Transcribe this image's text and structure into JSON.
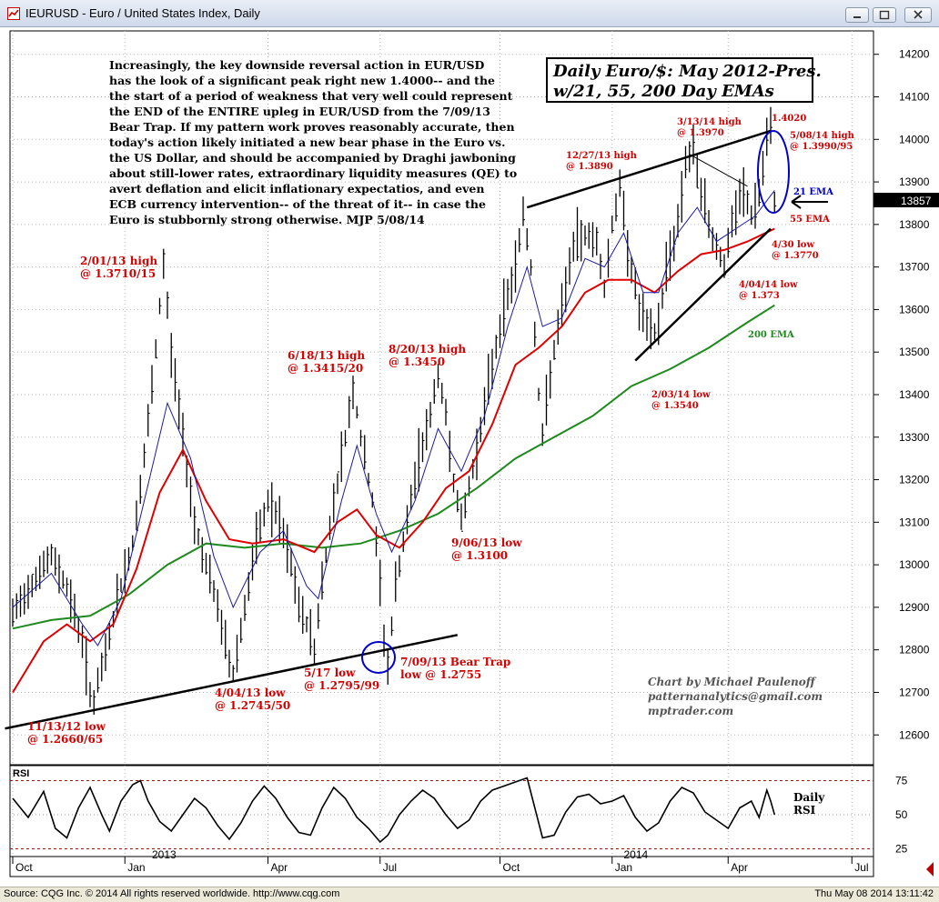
{
  "window": {
    "title": "IEURUSD - Euro / United States Index, Daily"
  },
  "statusbar": {
    "left": "Source: CQG Inc. © 2014 All rights reserved worldwide. http://www.cqg.com",
    "right": "Thu May 08 2014 13:11:42"
  },
  "commentary": {
    "lines": [
      "Increasingly, the key downside reversal action in EUR/USD",
      "has the look of a significant peak right new 1.4000-- and the",
      "the start of a period of weakness that very well could represent",
      "the END of the ENTIRE upleg in EUR/USD from the 7/09/13",
      "Bear Trap. If my pattern work proves reasonably accurate, then",
      "today's action likely initiated a new bear phase in the Euro vs.",
      "the US Dollar, and should be accompanied by Draghi jawboning",
      "about still-lower rates, extraordinary liquidity measures (QE) to",
      "avert deflation and elicit inflationary expectatios, and even",
      "ECB currency intervention-- of the threat of it-- in case the",
      "Euro is stubbornly strong otherwise.   MJP  5/08/14"
    ]
  },
  "chart_title_box": {
    "line1": "Daily Euro/$: May 2012-Pres.",
    "line2": "w/21, 55, 200 Day EMAs"
  },
  "credit": {
    "line1": "Chart by Michael Paulenoff",
    "line2": "patternanalytics@gmail.com",
    "line3": "mptrader.com"
  },
  "current_price_label": "13857",
  "rsi_panel": {
    "title": "RSI",
    "label_line1": "Daily",
    "label_line2": "RSI",
    "levels": [
      75,
      50,
      25
    ]
  },
  "colors": {
    "price_bars": "#000000",
    "ema21": "#1a1aa8",
    "ema55": "#e00000",
    "ema200": "#1e8a1e",
    "annotation_red": "#d40000",
    "annotation_green": "#1e8a1e",
    "annotation_blue": "#0000cc",
    "grid": "#b8b8b8"
  },
  "chart_data": {
    "type": "line",
    "symbol": "IEURUSD",
    "price_axis": {
      "ticks": [
        12600,
        12700,
        12800,
        12900,
        13000,
        13100,
        13200,
        13300,
        13400,
        13500,
        13600,
        13700,
        13800,
        13900,
        14000,
        14100,
        14200
      ],
      "ylim": [
        12530,
        14255
      ]
    },
    "time_axis": {
      "labels": [
        "Oct",
        "Jan",
        "Apr",
        "Jul",
        "Oct",
        "Jan",
        "Apr",
        "Jul"
      ],
      "year_labels": [
        "2013",
        "2014"
      ]
    },
    "series": [
      {
        "name": "21 EMA",
        "role": "ema21"
      },
      {
        "name": "55 EMA",
        "role": "ema55"
      },
      {
        "name": "200 EMA",
        "role": "ema200"
      }
    ],
    "price_path": [
      [
        0,
        12880
      ],
      [
        5,
        12960
      ],
      [
        10,
        13020
      ],
      [
        14,
        12950
      ],
      [
        18,
        12820
      ],
      [
        20,
        12700
      ],
      [
        21,
        12680
      ],
      [
        24,
        12790
      ],
      [
        27,
        12920
      ],
      [
        31,
        13050
      ],
      [
        34,
        13250
      ],
      [
        37,
        13500
      ],
      [
        39,
        13710
      ],
      [
        41,
        13500
      ],
      [
        44,
        13300
      ],
      [
        47,
        13100
      ],
      [
        50,
        13000
      ],
      [
        53,
        12900
      ],
      [
        56,
        12770
      ],
      [
        57,
        12745
      ],
      [
        60,
        12900
      ],
      [
        63,
        13050
      ],
      [
        66,
        13150
      ],
      [
        69,
        13100
      ],
      [
        72,
        13000
      ],
      [
        74,
        12900
      ],
      [
        77,
        12840
      ],
      [
        78,
        12800
      ],
      [
        80,
        12960
      ],
      [
        83,
        13150
      ],
      [
        86,
        13300
      ],
      [
        88,
        13415
      ],
      [
        90,
        13300
      ],
      [
        93,
        13150
      ],
      [
        95,
        12950
      ],
      [
        96,
        12830
      ],
      [
        97,
        12760
      ],
      [
        99,
        12950
      ],
      [
        102,
        13100
      ],
      [
        105,
        13250
      ],
      [
        108,
        13350
      ],
      [
        110,
        13450
      ],
      [
        112,
        13350
      ],
      [
        114,
        13200
      ],
      [
        116,
        13100
      ],
      [
        118,
        13180
      ],
      [
        121,
        13320
      ],
      [
        124,
        13470
      ],
      [
        127,
        13600
      ],
      [
        130,
        13700
      ],
      [
        132,
        13830
      ],
      [
        134,
        13700
      ],
      [
        136,
        13400
      ],
      [
        137,
        13300
      ],
      [
        139,
        13450
      ],
      [
        142,
        13600
      ],
      [
        145,
        13750
      ],
      [
        148,
        13780
      ],
      [
        151,
        13760
      ],
      [
        153,
        13650
      ],
      [
        155,
        13800
      ],
      [
        157,
        13890
      ],
      [
        159,
        13750
      ],
      [
        162,
        13600
      ],
      [
        165,
        13540
      ],
      [
        167,
        13560
      ],
      [
        169,
        13700
      ],
      [
        172,
        13800
      ],
      [
        174,
        13950
      ],
      [
        176,
        13970
      ],
      [
        178,
        13880
      ],
      [
        180,
        13800
      ],
      [
        182,
        13750
      ],
      [
        184,
        13700
      ],
      [
        186,
        13800
      ],
      [
        189,
        13880
      ],
      [
        191,
        13820
      ],
      [
        193,
        13870
      ],
      [
        195,
        13990
      ],
      [
        196,
        14020
      ],
      [
        197,
        13857
      ]
    ],
    "ema21": [
      [
        0,
        12900
      ],
      [
        10,
        12980
      ],
      [
        18,
        12860
      ],
      [
        22,
        12810
      ],
      [
        28,
        12920
      ],
      [
        34,
        13150
      ],
      [
        40,
        13380
      ],
      [
        46,
        13250
      ],
      [
        52,
        13020
      ],
      [
        57,
        12900
      ],
      [
        64,
        13030
      ],
      [
        70,
        13080
      ],
      [
        76,
        12950
      ],
      [
        79,
        12920
      ],
      [
        85,
        13150
      ],
      [
        89,
        13280
      ],
      [
        94,
        13120
      ],
      [
        98,
        13030
      ],
      [
        104,
        13150
      ],
      [
        110,
        13320
      ],
      [
        116,
        13220
      ],
      [
        122,
        13350
      ],
      [
        128,
        13560
      ],
      [
        133,
        13700
      ],
      [
        137,
        13560
      ],
      [
        142,
        13580
      ],
      [
        148,
        13720
      ],
      [
        153,
        13700
      ],
      [
        158,
        13780
      ],
      [
        163,
        13640
      ],
      [
        167,
        13640
      ],
      [
        172,
        13780
      ],
      [
        177,
        13840
      ],
      [
        182,
        13760
      ],
      [
        187,
        13790
      ],
      [
        192,
        13820
      ],
      [
        197,
        13880
      ]
    ],
    "ema55": [
      [
        0,
        12700
      ],
      [
        8,
        12820
      ],
      [
        14,
        12860
      ],
      [
        20,
        12820
      ],
      [
        26,
        12860
      ],
      [
        32,
        12990
      ],
      [
        38,
        13170
      ],
      [
        44,
        13270
      ],
      [
        50,
        13150
      ],
      [
        56,
        13060
      ],
      [
        62,
        13050
      ],
      [
        70,
        13060
      ],
      [
        78,
        13030
      ],
      [
        84,
        13100
      ],
      [
        89,
        13130
      ],
      [
        94,
        13070
      ],
      [
        100,
        13040
      ],
      [
        106,
        13100
      ],
      [
        112,
        13180
      ],
      [
        118,
        13220
      ],
      [
        124,
        13330
      ],
      [
        130,
        13470
      ],
      [
        136,
        13510
      ],
      [
        142,
        13560
      ],
      [
        148,
        13640
      ],
      [
        154,
        13670
      ],
      [
        160,
        13670
      ],
      [
        166,
        13640
      ],
      [
        172,
        13690
      ],
      [
        178,
        13730
      ],
      [
        184,
        13740
      ],
      [
        190,
        13760
      ],
      [
        197,
        13790
      ]
    ],
    "ema200": [
      [
        0,
        12850
      ],
      [
        10,
        12870
      ],
      [
        20,
        12880
      ],
      [
        30,
        12930
      ],
      [
        40,
        13000
      ],
      [
        50,
        13050
      ],
      [
        60,
        13040
      ],
      [
        70,
        13050
      ],
      [
        80,
        13040
      ],
      [
        90,
        13050
      ],
      [
        100,
        13080
      ],
      [
        110,
        13120
      ],
      [
        120,
        13180
      ],
      [
        130,
        13250
      ],
      [
        140,
        13300
      ],
      [
        150,
        13350
      ],
      [
        160,
        13420
      ],
      [
        170,
        13460
      ],
      [
        180,
        13510
      ],
      [
        190,
        13570
      ],
      [
        197,
        13610
      ]
    ],
    "rsi": [
      [
        0,
        62
      ],
      [
        4,
        48
      ],
      [
        8,
        67
      ],
      [
        11,
        40
      ],
      [
        14,
        33
      ],
      [
        17,
        55
      ],
      [
        20,
        70
      ],
      [
        23,
        50
      ],
      [
        25,
        38
      ],
      [
        28,
        60
      ],
      [
        31,
        72
      ],
      [
        33,
        75
      ],
      [
        35,
        60
      ],
      [
        38,
        45
      ],
      [
        41,
        38
      ],
      [
        44,
        50
      ],
      [
        47,
        62
      ],
      [
        50,
        55
      ],
      [
        53,
        42
      ],
      [
        56,
        32
      ],
      [
        59,
        44
      ],
      [
        62,
        60
      ],
      [
        65,
        71
      ],
      [
        68,
        62
      ],
      [
        71,
        48
      ],
      [
        74,
        37
      ],
      [
        77,
        35
      ],
      [
        80,
        55
      ],
      [
        83,
        70
      ],
      [
        86,
        62
      ],
      [
        89,
        48
      ],
      [
        92,
        40
      ],
      [
        95,
        30
      ],
      [
        97,
        35
      ],
      [
        100,
        50
      ],
      [
        103,
        60
      ],
      [
        106,
        68
      ],
      [
        109,
        62
      ],
      [
        112,
        50
      ],
      [
        115,
        40
      ],
      [
        118,
        46
      ],
      [
        121,
        60
      ],
      [
        124,
        68
      ],
      [
        127,
        71
      ],
      [
        130,
        74
      ],
      [
        133,
        77
      ],
      [
        135,
        55
      ],
      [
        137,
        33
      ],
      [
        140,
        35
      ],
      [
        143,
        52
      ],
      [
        146,
        63
      ],
      [
        149,
        65
      ],
      [
        152,
        58
      ],
      [
        155,
        60
      ],
      [
        158,
        64
      ],
      [
        161,
        48
      ],
      [
        164,
        38
      ],
      [
        167,
        44
      ],
      [
        170,
        60
      ],
      [
        173,
        70
      ],
      [
        176,
        66
      ],
      [
        179,
        52
      ],
      [
        182,
        46
      ],
      [
        185,
        40
      ],
      [
        188,
        55
      ],
      [
        191,
        60
      ],
      [
        193,
        48
      ],
      [
        195,
        68
      ],
      [
        196,
        60
      ],
      [
        197,
        50
      ]
    ],
    "trendlines": [
      {
        "name": "lower support",
        "from": [
          -2,
          12615
        ],
        "to": [
          115,
          12835
        ]
      },
      {
        "name": "upper resistance",
        "from": [
          133,
          13840
        ],
        "to": [
          196,
          14020
        ]
      },
      {
        "name": "rising support",
        "from": [
          161,
          13480
        ],
        "to": [
          196,
          13790
        ]
      },
      {
        "name": "thin downtrend",
        "from": [
          175,
          13965
        ],
        "to": [
          190,
          13890
        ]
      }
    ],
    "annotations": [
      {
        "text": "2/01/13 high",
        "text2": "@ 1.3710/15",
        "color": "red"
      },
      {
        "text": "11/13/12 low",
        "text2": "@ 1.2660/65",
        "color": "red"
      },
      {
        "text": "4/04/13 low",
        "text2": "@ 1.2745/50",
        "color": "red"
      },
      {
        "text": "5/17 low",
        "text2": "@ 1.2795/99",
        "color": "red"
      },
      {
        "text": "7/09/13 Bear Trap",
        "text2": "low @ 1.2755",
        "color": "red"
      },
      {
        "text": "6/18/13 high",
        "text2": "@ 1.3415/20",
        "color": "red"
      },
      {
        "text": "8/20/13 high",
        "text2": "@ 1.3450",
        "color": "red"
      },
      {
        "text": "9/06/13 low",
        "text2": "@ 1.3100",
        "color": "red"
      },
      {
        "text": "12/27/13 high",
        "text2": "@ 1.3890",
        "color": "red"
      },
      {
        "text": "3/13/14 high",
        "text2": "@ 1.3970",
        "color": "red"
      },
      {
        "text": "1.4020",
        "text2": "",
        "color": "red"
      },
      {
        "text": "5/08/14 high",
        "text2": "@ 1.3990/95",
        "color": "red"
      },
      {
        "text": "4/30 low",
        "text2": "@ 1.3770",
        "color": "red"
      },
      {
        "text": "4/04/14 low",
        "text2": "@ 1.373",
        "color": "red"
      },
      {
        "text": "2/03/14 low",
        "text2": "@ 1.3540",
        "color": "red"
      },
      {
        "text": "21 EMA",
        "text2": "",
        "color": "blue"
      },
      {
        "text": "55 EMA",
        "text2": "",
        "color": "red"
      },
      {
        "text": "200 EMA",
        "text2": "",
        "color": "green"
      }
    ]
  }
}
